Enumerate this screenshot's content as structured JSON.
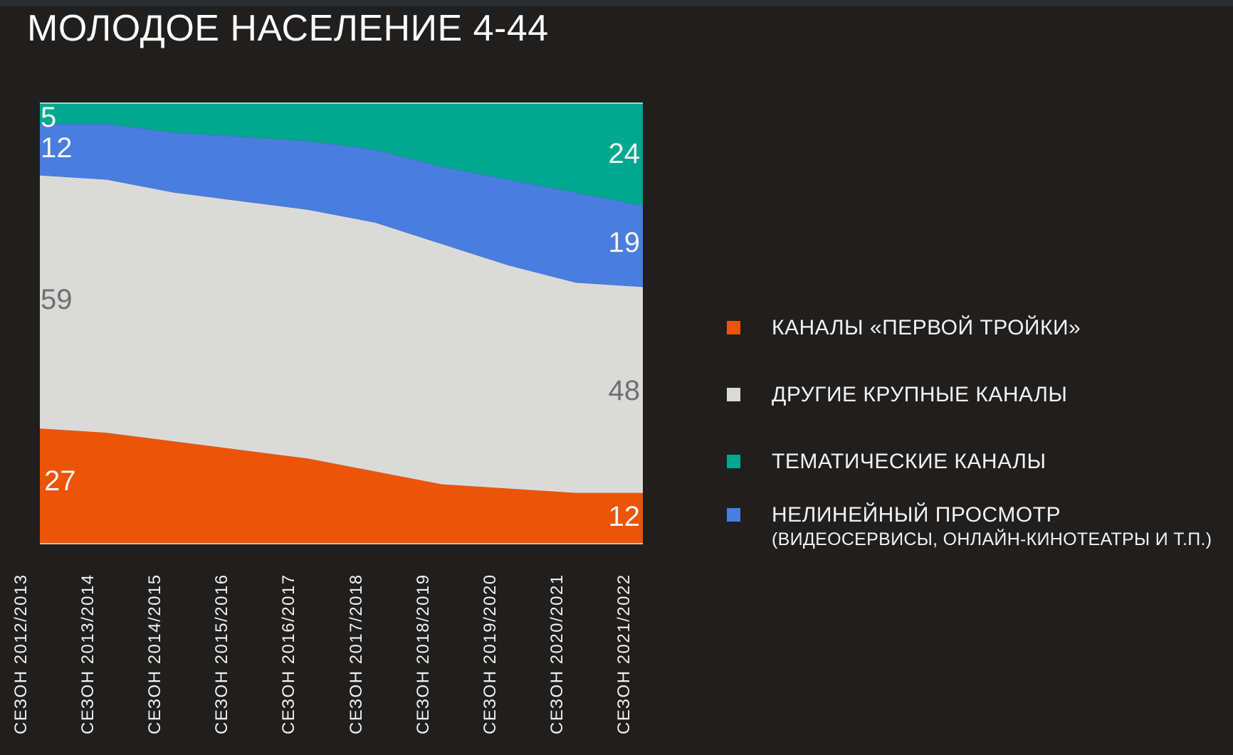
{
  "title": "МОЛОДОЕ НАСЕЛЕНИЕ 4-44",
  "colors": {
    "background": "#201F1E",
    "top_bar": "#2A2E33",
    "text": "#F4F4F4",
    "muted_label": "#6F6F6F",
    "axis_line": "rgba(255,255,255,0.6)"
  },
  "chart_data": {
    "type": "area",
    "stacked": true,
    "title": "МОЛОДОЕ НАСЕЛЕНИЕ 4-44",
    "categories": [
      "СЕЗОН 2012/2013",
      "СЕЗОН 2013/2014",
      "СЕЗОН 2014/2015",
      "СЕЗОН 2015/2016",
      "СЕЗОН 2016/2017",
      "СЕЗОН 2017/2018",
      "СЕЗОН 2018/2019",
      "СЕЗОН 2019/2020",
      "СЕЗОН 2020/2021",
      "СЕЗОН 2021/2022"
    ],
    "series": [
      {
        "name": "КАНАЛЫ «ПЕРВОЙ ТРОЙКИ»",
        "color": "#EC5408",
        "values": [
          27,
          26,
          24,
          22,
          20,
          17,
          14,
          13,
          12,
          12
        ]
      },
      {
        "name": "ДРУГИЕ КРУПНЫЕ КАНАЛЫ",
        "color": "#DADBD9",
        "values": [
          59,
          59,
          58,
          58,
          58,
          58,
          56,
          52,
          49,
          48
        ]
      },
      {
        "name": "НЕЛИНЕЙНЫЙ ПРОСМОТР (ВИДЕОСЕРВИСЫ, ОНЛАЙН-КИНОТЕАТРЫ И Т.П.)",
        "color": "#4A7DE0",
        "values": [
          12,
          13,
          14,
          15,
          16,
          17,
          18,
          20,
          21,
          19
        ]
      },
      {
        "name": "ТЕМАТИЧЕСКИЕ КАНАЛЫ",
        "color": "#00A890",
        "values": [
          5,
          5,
          7,
          8,
          9,
          11,
          15,
          18,
          21,
          24
        ]
      }
    ],
    "ylim": [
      0,
      103
    ],
    "grid": false,
    "legend_position": "right",
    "xlabel": "",
    "ylabel": ""
  },
  "value_labels": {
    "left": {
      "tematic": "5",
      "nonlinear": "12",
      "other": "59",
      "top3": "27"
    },
    "right": {
      "tematic": "24",
      "nonlinear": "19",
      "other": "48",
      "top3": "12"
    }
  },
  "legend": {
    "items": [
      {
        "label": "КАНАЛЫ «ПЕРВОЙ ТРОЙКИ»",
        "sublabel": "",
        "color": "#EC5408"
      },
      {
        "label": "ДРУГИЕ КРУПНЫЕ КАНАЛЫ",
        "sublabel": "",
        "color": "#DADBD9"
      },
      {
        "label": "ТЕМАТИЧЕСКИЕ КАНАЛЫ",
        "sublabel": "",
        "color": "#00A890"
      },
      {
        "label": "НЕЛИНЕЙНЫЙ ПРОСМОТР",
        "sublabel": "(ВИДЕОСЕРВИСЫ, ОНЛАЙН-КИНОТЕАТРЫ И Т.П.)",
        "color": "#4A7DE0"
      }
    ]
  }
}
